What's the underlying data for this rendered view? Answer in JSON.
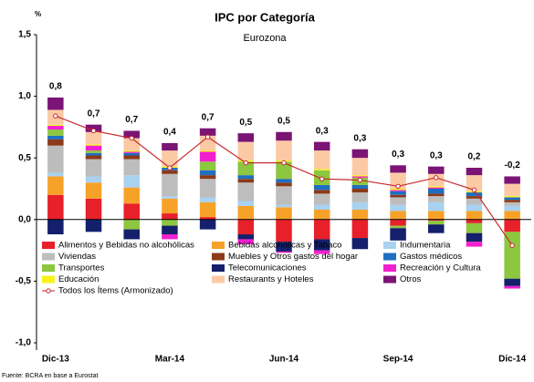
{
  "chart_data": {
    "type": "stacked_bar",
    "title": "IPC por Categoría",
    "subtitle": "Eurozona",
    "y_unit": "%",
    "source": "Fuente: BCRA en base a Eurostat",
    "categories": [
      "Dic-13",
      null,
      null,
      "Mar-14",
      null,
      null,
      "Jun-14",
      null,
      null,
      "Sep-14",
      null,
      null,
      "Dic-14"
    ],
    "ylim": [
      -1.0,
      1.5
    ],
    "yticks": [
      {
        "value": -1.0,
        "label": "-1,0"
      },
      {
        "value": -0.5,
        "label": "-0,5"
      },
      {
        "value": 0,
        "label": "0,0"
      },
      {
        "value": 0.5,
        "label": "0,5"
      },
      {
        "value": 1.0,
        "label": "1,0"
      },
      {
        "value": 1.5,
        "label": "1,5"
      }
    ],
    "series": [
      {
        "name": "Alimentos y Bebidas no alcohólicas",
        "color": "#e8202a",
        "values": [
          0.2,
          0.17,
          0.13,
          0.05,
          0.02,
          -0.12,
          -0.18,
          -0.16,
          -0.15,
          -0.05,
          -0.01,
          -0.03,
          -0.1
        ]
      },
      {
        "name": "Bebidas alcohólicas y Tabaco",
        "color": "#f6a229",
        "values": [
          0.15,
          0.13,
          0.13,
          0.12,
          0.12,
          0.11,
          0.1,
          0.08,
          0.08,
          0.07,
          0.07,
          0.07,
          0.07
        ]
      },
      {
        "name": "Indumentaria",
        "color": "#a9d1f0",
        "values": [
          0.03,
          0.05,
          0.1,
          0.02,
          0.04,
          0.04,
          0.02,
          0.04,
          0.06,
          0.05,
          0.07,
          0.05,
          0.04
        ]
      },
      {
        "name": "Viviendas",
        "color": "#bdbdbd",
        "values": [
          0.22,
          0.14,
          0.13,
          0.18,
          0.15,
          0.15,
          0.15,
          0.09,
          0.08,
          0.06,
          0.05,
          0.05,
          0.03
        ]
      },
      {
        "name": "Muebles y Otros gastos del hogar",
        "color": "#8b3a1a",
        "values": [
          0.05,
          0.03,
          0.03,
          0.03,
          0.03,
          0.03,
          0.03,
          0.03,
          0.03,
          0.02,
          0.02,
          0.02,
          0.02
        ]
      },
      {
        "name": "Gastos médicos",
        "color": "#1f6fc0",
        "values": [
          0.03,
          0.02,
          0.02,
          0.02,
          0.04,
          0.03,
          0.03,
          0.04,
          0.03,
          0.03,
          0.04,
          0.03,
          0.02
        ]
      },
      {
        "name": "Transportes",
        "color": "#8dc63f",
        "values": [
          0.05,
          0.02,
          -0.08,
          -0.05,
          0.07,
          0.11,
          0.14,
          0.12,
          0.06,
          -0.02,
          -0.03,
          -0.08,
          -0.38
        ]
      },
      {
        "name": "Telecomunicaciones",
        "color": "#14206b",
        "values": [
          -0.12,
          -0.1,
          -0.08,
          -0.07,
          -0.08,
          -0.04,
          -0.08,
          -0.09,
          -0.09,
          -0.1,
          -0.07,
          -0.07,
          -0.06
        ]
      },
      {
        "name": "Recreación y Cultura",
        "color": "#f21fd0",
        "values": [
          0.03,
          0.04,
          0.01,
          -0.04,
          0.08,
          -0.04,
          -0.01,
          -0.03,
          0.01,
          0.01,
          0.01,
          -0.04,
          -0.02
        ]
      },
      {
        "name": "Educación",
        "color": "#f7f21a",
        "values": [
          0.01,
          0.01,
          0.01,
          0.01,
          0.01,
          0.01,
          0.01,
          0.01,
          0.01,
          0.01,
          0.01,
          0.01,
          0.01
        ]
      },
      {
        "name": "Restaurants y Hoteles",
        "color": "#fbcaa5",
        "values": [
          0.12,
          0.1,
          0.1,
          0.13,
          0.12,
          0.15,
          0.16,
          0.15,
          0.14,
          0.13,
          0.1,
          0.13,
          0.1
        ]
      },
      {
        "name": "Otros",
        "color": "#7b1475",
        "values": [
          0.1,
          0.06,
          0.06,
          0.06,
          0.06,
          0.07,
          0.07,
          0.07,
          0.07,
          0.06,
          0.06,
          0.06,
          0.06
        ]
      }
    ],
    "line": {
      "name": "Todos los Ítems (Armonizado)",
      "color": "#c8282d",
      "values": [
        0.84,
        0.72,
        0.66,
        0.42,
        0.67,
        0.46,
        0.46,
        0.33,
        0.32,
        0.27,
        0.34,
        0.24,
        -0.21
      ],
      "value_labels": [
        "0,8",
        "0,7",
        "0,7",
        "0,4",
        "0,7",
        "0,5",
        "0,5",
        "0,3",
        "0,3",
        "0,3",
        "0,3",
        "0,2",
        "-0,2"
      ]
    }
  }
}
